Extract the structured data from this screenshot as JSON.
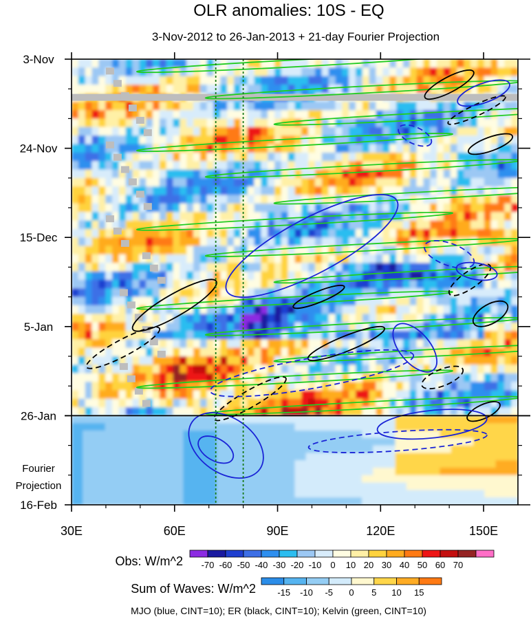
{
  "chart_data": {
    "type": "heatmap",
    "title": "OLR anomalies: 10S - EQ",
    "subtitle": "3-Nov-2012 to 26-Jan-2013 + 21-day Fourier Projection",
    "xlim": [
      30,
      160
    ],
    "x_ticks": [
      {
        "value": 30,
        "label": "30E"
      },
      {
        "value": 60,
        "label": "60E"
      },
      {
        "value": 90,
        "label": "90E"
      },
      {
        "value": 120,
        "label": "120E"
      },
      {
        "value": 150,
        "label": "150E"
      }
    ],
    "ylim_days": [
      0,
      105
    ],
    "y_ticks": [
      {
        "day": 0,
        "label": "3-Nov"
      },
      {
        "day": 21,
        "label": "24-Nov"
      },
      {
        "day": 42,
        "label": "15-Dec"
      },
      {
        "day": 63,
        "label": "5-Jan"
      },
      {
        "day": 84,
        "label": "26-Jan"
      },
      {
        "day": 105,
        "label": "16-Feb"
      }
    ],
    "projection_label_lines": [
      "Fourier",
      "Projection"
    ],
    "observed_end_day": 84,
    "reference_lines_lon": [
      72,
      80
    ],
    "obs_colorbar": {
      "label": "Obs: W/m^2",
      "levels": [
        -70,
        -60,
        -50,
        -40,
        -30,
        -20,
        -10,
        0,
        10,
        20,
        30,
        40,
        50,
        60,
        70
      ],
      "colors": [
        "#8c2be2",
        "#1a1aa0",
        "#1f3fd0",
        "#3d6fe6",
        "#2e8fef",
        "#2bbdf0",
        "#9cc8f4",
        "#d8ecfb",
        "#fffde2",
        "#fff0a6",
        "#ffd33d",
        "#ffab1f",
        "#ff7a14",
        "#ee1515",
        "#c40f0f",
        "#952323",
        "#ff6ec7"
      ]
    },
    "waves_colorbar": {
      "label": "Sum of Waves: W/m^2",
      "levels": [
        -15,
        -10,
        -5,
        0,
        5,
        10,
        15
      ],
      "colors": [
        "#2b8de8",
        "#56b4f0",
        "#94cdf4",
        "#d3ebfb",
        "#fff8cf",
        "#ffd64a",
        "#ffac24",
        "#ff7a14"
      ]
    },
    "gray_missing_rows_day": [
      9
    ],
    "contour_legend": "MJO (blue, CINT=10); ER (black, CINT=10); Kelvin (green, CINT=10)",
    "wave_colors": {
      "mjo": "#1a24d6",
      "er": "#000000",
      "kelvin": "#22cc22"
    }
  }
}
